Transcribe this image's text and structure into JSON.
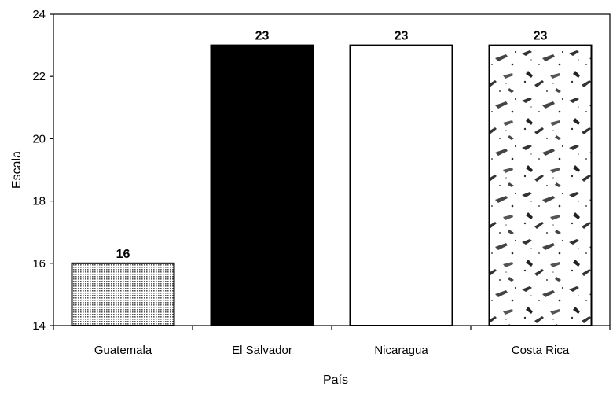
{
  "chart_data": {
    "type": "bar",
    "title": "",
    "xlabel": "País",
    "ylabel": "Escala",
    "categories": [
      "Guatemala",
      "El Salvador",
      "Nicaragua",
      "Costa Rica"
    ],
    "values": [
      16,
      23,
      23,
      23
    ],
    "data_labels": [
      "16",
      "23",
      "23",
      "23"
    ],
    "ylim": [
      14,
      24
    ],
    "yticks": [
      14,
      16,
      18,
      20,
      22,
      24
    ],
    "ytick_labels": [
      "14",
      "16",
      "18",
      "20",
      "22",
      "24"
    ],
    "grid": false,
    "legend": "none",
    "bar_fills": [
      "dotted-gray",
      "solid-black",
      "white",
      "speckled"
    ],
    "colors": {
      "bar_dark": "#000000",
      "bar_light": "#ffffff",
      "axis": "#000000"
    }
  }
}
